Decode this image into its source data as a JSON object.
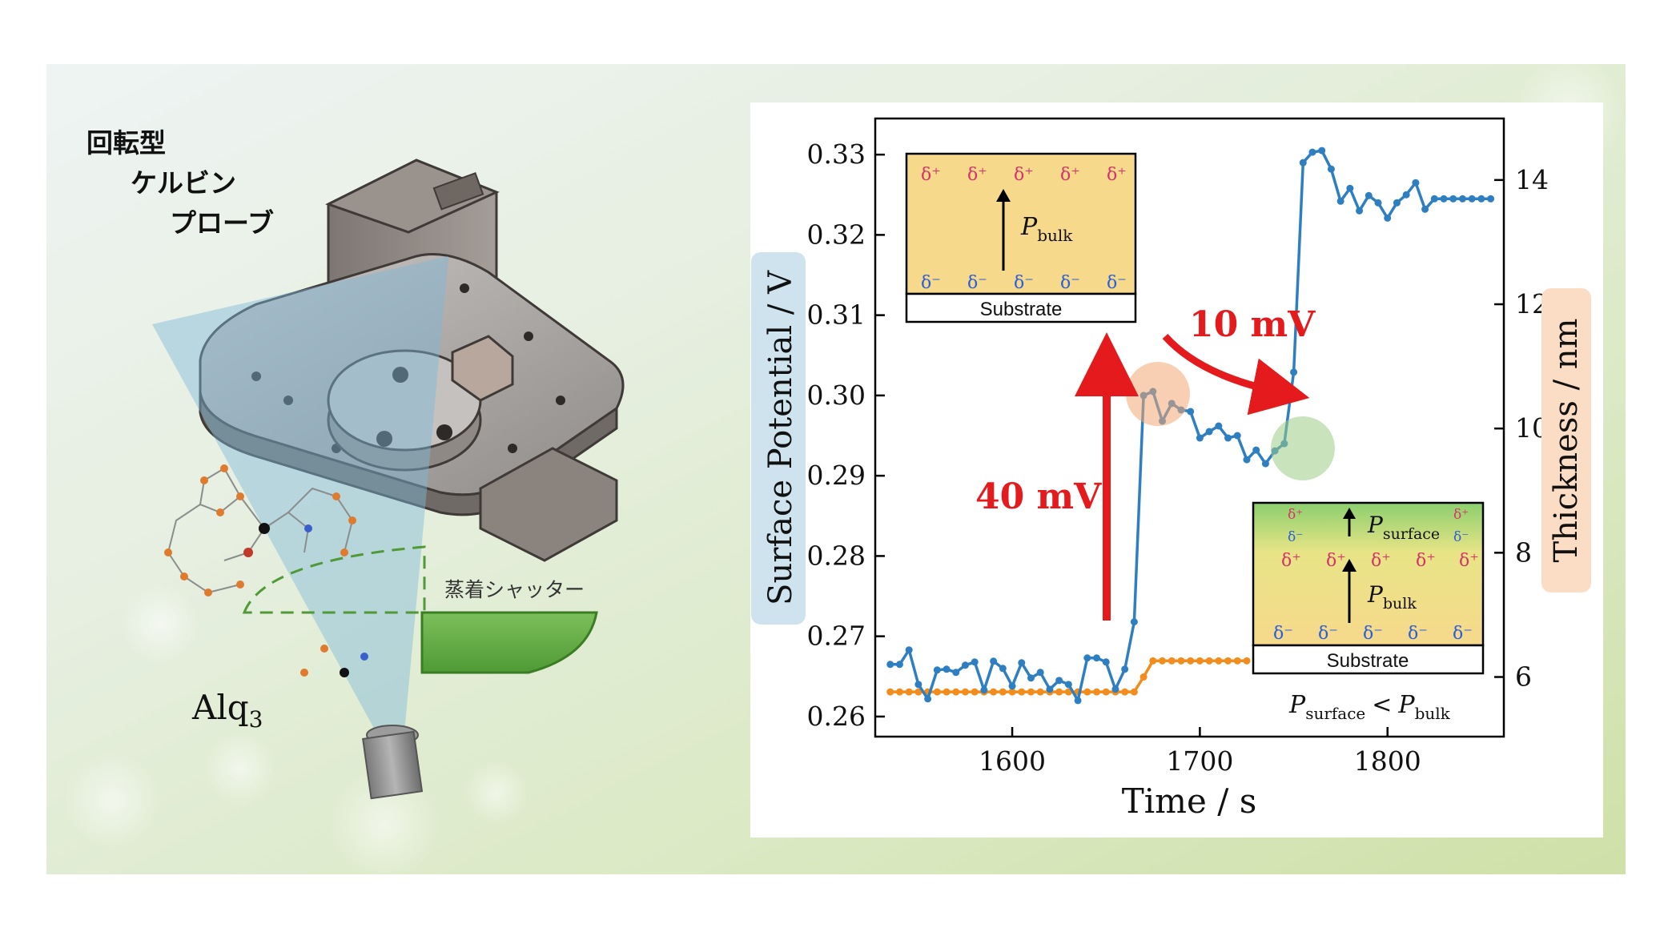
{
  "figure": {
    "jp_title_line1": "回転型",
    "jp_title_line2": "ケルビン",
    "jp_title_line3": "プローブ",
    "shutter_label": "蒸着シャッター",
    "molecule_label_main": "Alq",
    "molecule_label_sub": "3"
  },
  "insets": {
    "top": {
      "dplus": "δ⁺",
      "dminus": "δ⁻",
      "P": "P",
      "bulk_sub": "bulk",
      "substrate": "Substrate"
    },
    "bottom": {
      "dplus": "δ⁺",
      "dminus": "δ⁻",
      "P": "P",
      "surface_sub": "surface",
      "bulk_sub": "bulk",
      "substrate": "Substrate"
    },
    "relation": {
      "P": "P",
      "surface_sub": "surface",
      "lt": "<",
      "bulk_sub": "bulk"
    }
  },
  "annotations": {
    "jump_40": "40 mV",
    "drop_10": "10 mV"
  },
  "chart_data": {
    "type": "line",
    "xlabel": "Time / s",
    "ylabel": "Surface Potential / V",
    "y2label": "Thickness / nm",
    "xlim": [
      1527,
      1862
    ],
    "ylim": [
      0.2575,
      0.3345
    ],
    "y2lim": [
      5.04,
      14.99
    ],
    "xticks": [
      "1600",
      "1700",
      "1800"
    ],
    "yticks": [
      "0.26",
      "0.27",
      "0.28",
      "0.29",
      "0.30",
      "0.31",
      "0.32",
      "0.33"
    ],
    "y2ticks": [
      "6",
      "8",
      "10",
      "12",
      "14"
    ],
    "colors": {
      "potential": "#2e7fc1",
      "thickness": "#f28c1c",
      "arrow": "#e41a1c"
    },
    "series": [
      {
        "axis": "left",
        "x": [
          1535,
          1540,
          1545,
          1550,
          1555,
          1560,
          1565,
          1570,
          1575,
          1580,
          1585,
          1590,
          1595,
          1600,
          1605,
          1610,
          1615,
          1620,
          1625,
          1630,
          1635,
          1640,
          1645,
          1650,
          1655,
          1660,
          1665,
          1670,
          1675,
          1680,
          1685,
          1690,
          1695,
          1700,
          1705,
          1710,
          1715,
          1720,
          1725,
          1730,
          1735,
          1740,
          1745,
          1750,
          1755,
          1760,
          1765,
          1770,
          1775,
          1780,
          1785,
          1790,
          1795,
          1800,
          1805,
          1810,
          1815,
          1820,
          1825,
          1830,
          1835,
          1840,
          1845,
          1850,
          1855
        ],
        "values": [
          0.2665,
          0.2665,
          0.2683,
          0.264,
          0.2622,
          0.2658,
          0.2659,
          0.2655,
          0.2664,
          0.2668,
          0.2633,
          0.2669,
          0.266,
          0.2638,
          0.2667,
          0.2648,
          0.2655,
          0.2634,
          0.2645,
          0.264,
          0.262,
          0.2673,
          0.2673,
          0.2668,
          0.2634,
          0.2659,
          0.2718,
          0.3,
          0.3005,
          0.2968,
          0.299,
          0.2982,
          0.298,
          0.2947,
          0.2955,
          0.2962,
          0.2947,
          0.295,
          0.292,
          0.2932,
          0.2915,
          0.2931,
          0.294,
          0.3029,
          0.329,
          0.3303,
          0.3305,
          0.3282,
          0.3242,
          0.3258,
          0.323,
          0.3249,
          0.324,
          0.3221,
          0.324,
          0.325,
          0.3265,
          0.3232,
          0.3245,
          0.3245,
          0.3245,
          0.3245,
          0.3245,
          0.3245,
          0.3245
        ]
      },
      {
        "axis": "right",
        "x": [
          1535,
          1540,
          1545,
          1550,
          1555,
          1560,
          1565,
          1570,
          1575,
          1580,
          1585,
          1590,
          1595,
          1600,
          1605,
          1610,
          1615,
          1620,
          1625,
          1630,
          1635,
          1640,
          1645,
          1650,
          1655,
          1660,
          1665,
          1670,
          1675,
          1680,
          1685,
          1690,
          1695,
          1700,
          1705,
          1710,
          1715,
          1720,
          1725
        ],
        "values": [
          5.76,
          5.76,
          5.76,
          5.76,
          5.76,
          5.76,
          5.76,
          5.76,
          5.76,
          5.76,
          5.76,
          5.76,
          5.76,
          5.76,
          5.76,
          5.76,
          5.76,
          5.76,
          5.76,
          5.76,
          5.76,
          5.76,
          5.76,
          5.76,
          5.76,
          5.76,
          5.76,
          6.0,
          6.26,
          6.26,
          6.26,
          6.26,
          6.26,
          6.26,
          6.26,
          6.26,
          6.26,
          6.26,
          6.26
        ]
      }
    ]
  }
}
